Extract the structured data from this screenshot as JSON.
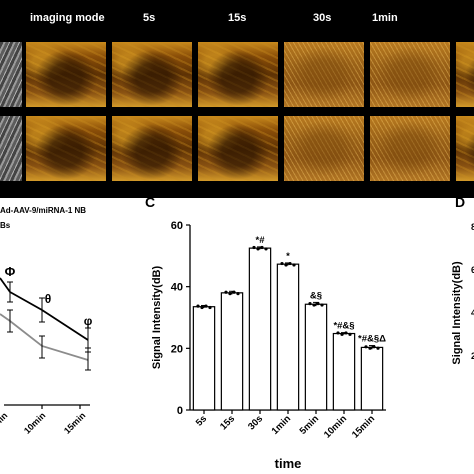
{
  "top_panel": {
    "column_labels": [
      "imaging mode",
      "5s",
      "15s",
      "30s",
      "1min"
    ]
  },
  "left_panel": {
    "legend_line1": "Ad-AAV-9/miRNA-1 NB",
    "legend_line2": "Bs",
    "marker_labels": [
      "Φ",
      "θ",
      "φ"
    ],
    "x_tick_labels": [
      "min",
      "10min",
      "15min"
    ]
  },
  "panel_C": {
    "letter": "C"
  },
  "panel_D": {
    "letter": "D",
    "ylabel_fragment": "Signal Intensity(dB)",
    "tick_fragments": [
      "8",
      "6",
      "4",
      "2"
    ]
  },
  "chart_data": {
    "type": "bar",
    "categories": [
      "5s",
      "15s",
      "30s",
      "1min",
      "5min",
      "10min",
      "15min"
    ],
    "values": [
      33.5,
      38,
      52.5,
      47.3,
      34.3,
      24.8,
      20.3
    ],
    "errors": [
      0.4,
      0.5,
      0.4,
      0.4,
      0.6,
      0.3,
      0.6
    ],
    "significance": [
      "",
      "",
      "*#",
      "*",
      "&§",
      "*#&§",
      "*#&§Δ"
    ],
    "xlabel": "time",
    "ylabel": "Signal Intensity(dB)",
    "ylim": [
      0,
      60
    ],
    "yticks": [
      0,
      20,
      40,
      60
    ],
    "bar_color": "#ffffff",
    "edge_color": "#000000"
  }
}
